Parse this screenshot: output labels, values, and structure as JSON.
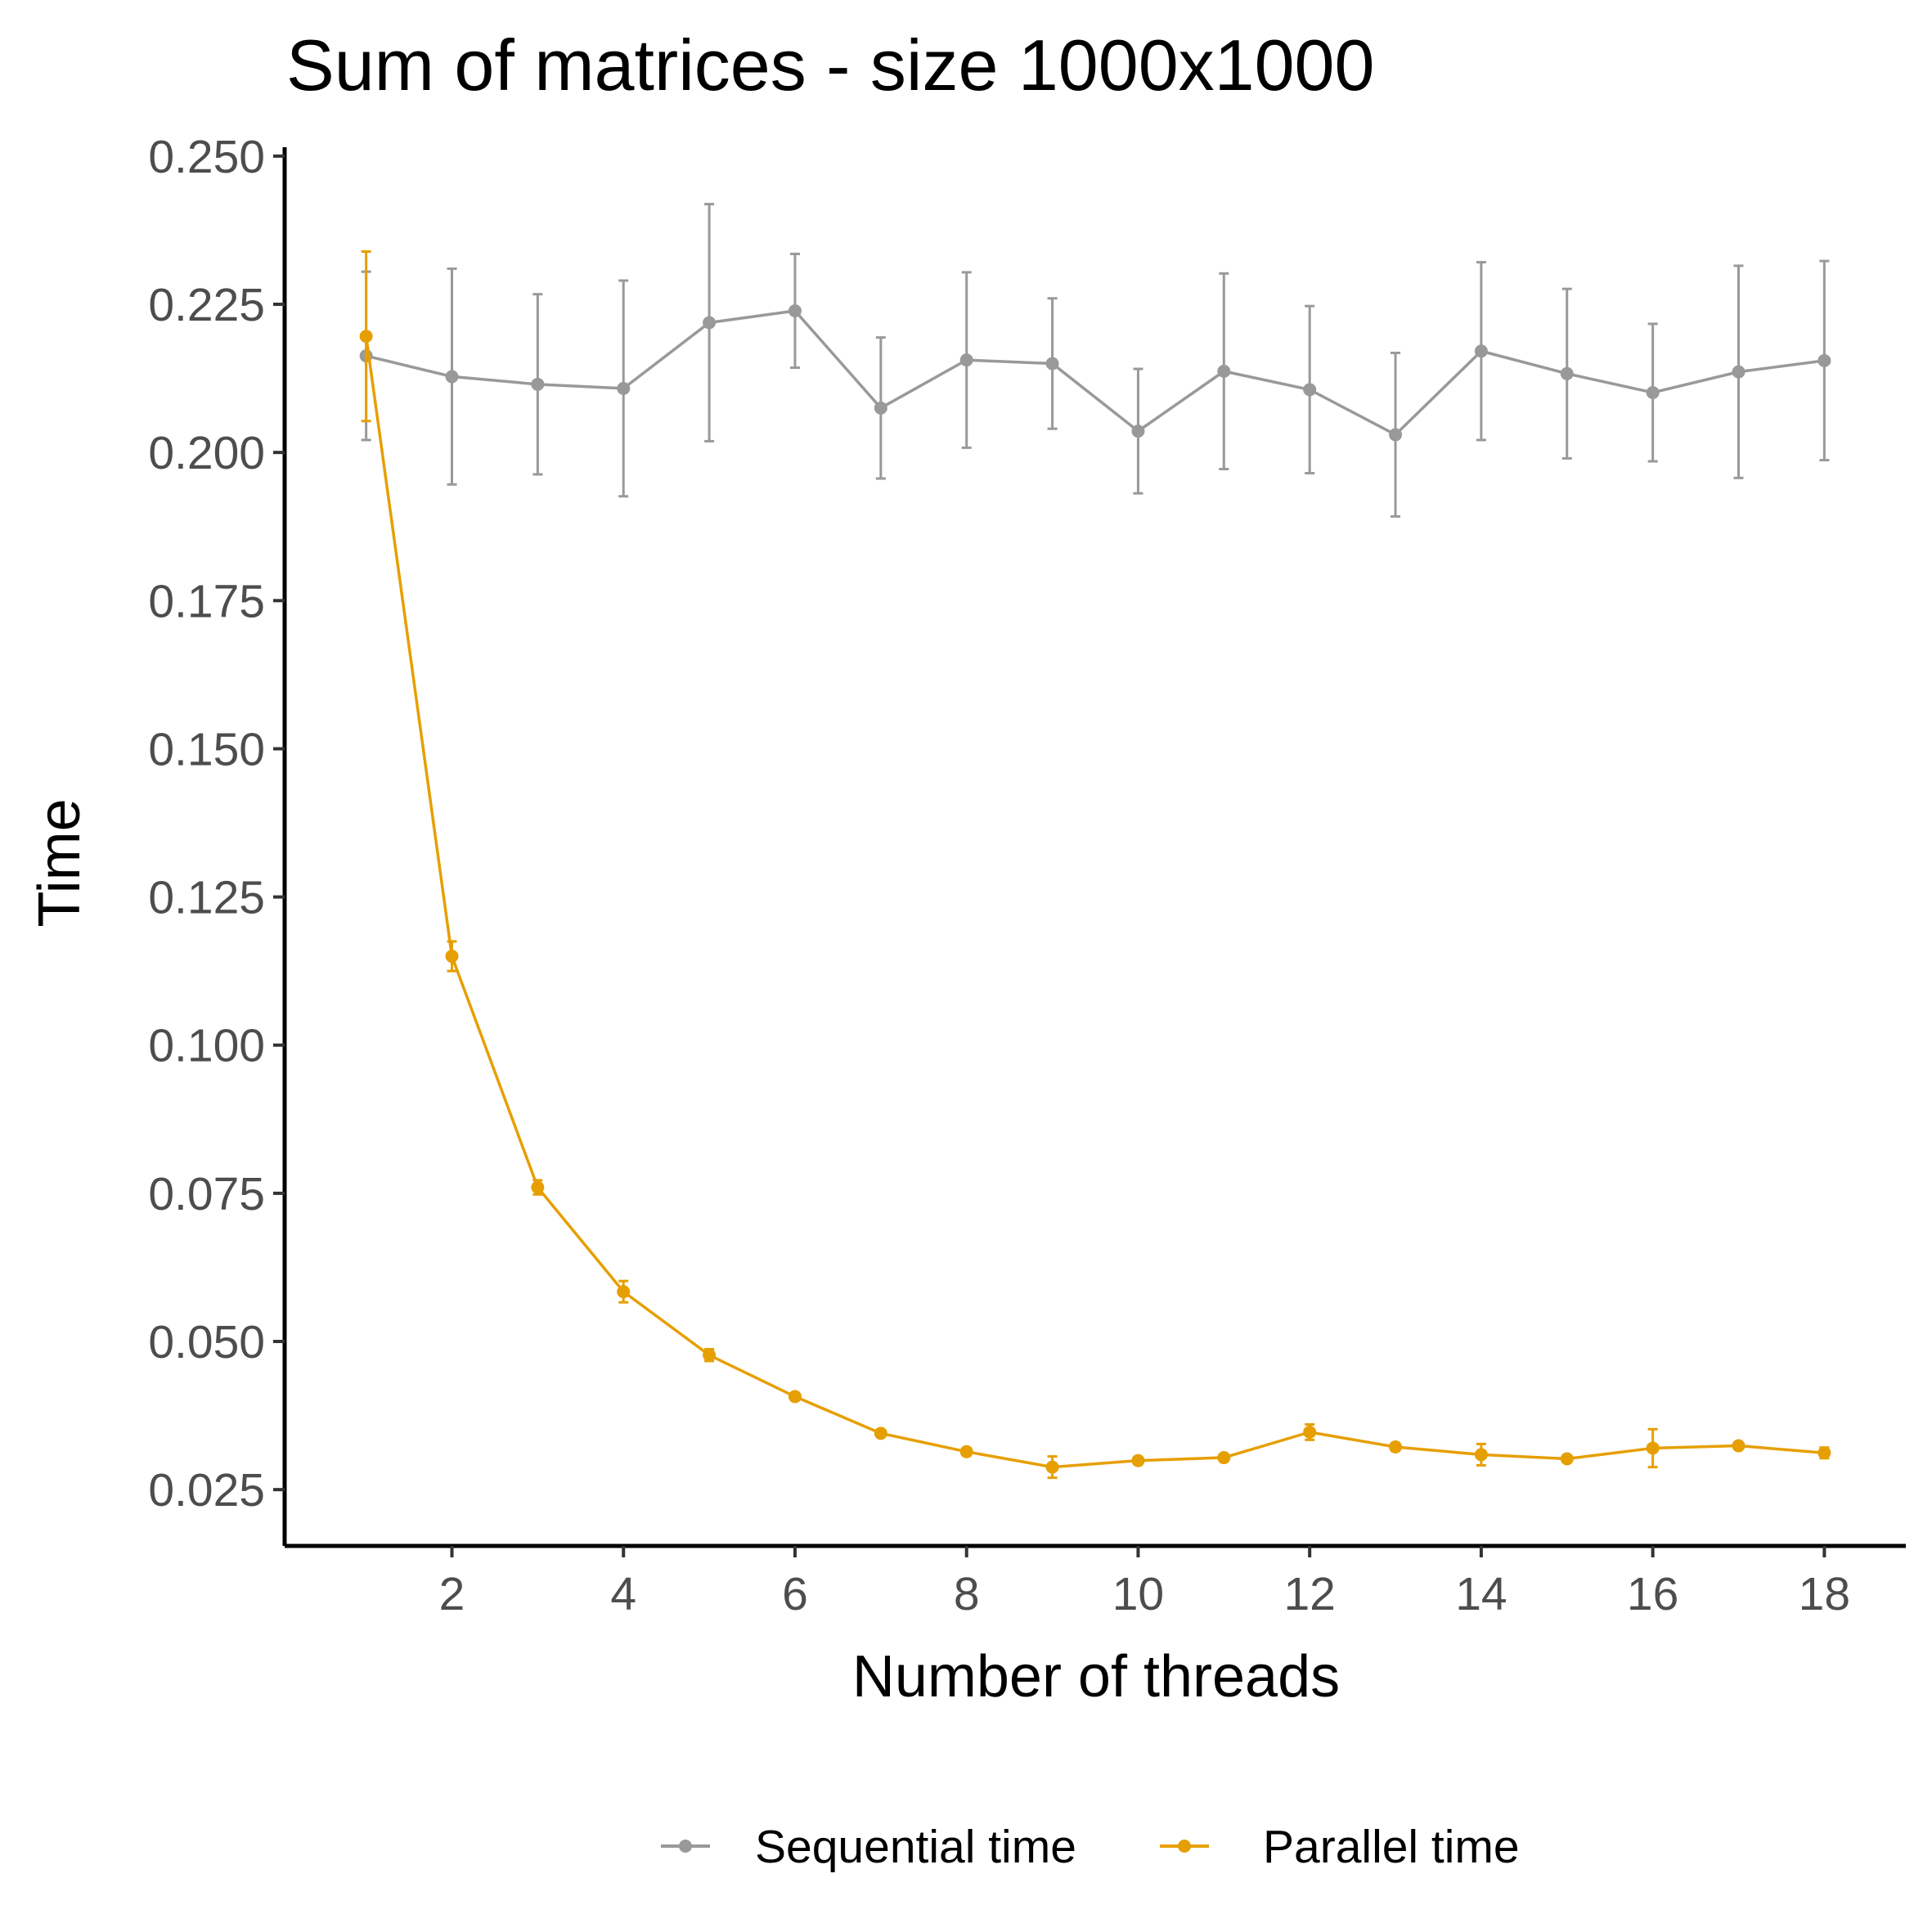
{
  "chart_data": {
    "type": "line",
    "title": "Sum of matrices - size 1000x1000",
    "xlabel": "Number of threads",
    "ylabel": "Time",
    "xlim": [
      0.05,
      18.95
    ],
    "ylim": [
      0.0155,
      0.2515
    ],
    "x_ticks": [
      2,
      4,
      6,
      8,
      10,
      12,
      14,
      16,
      18
    ],
    "x_tick_labels": [
      "2",
      "4",
      "6",
      "8",
      "10",
      "12",
      "14",
      "16",
      "18"
    ],
    "y_ticks": [
      0.025,
      0.05,
      0.075,
      0.1,
      0.125,
      0.15,
      0.175,
      0.2,
      0.225,
      0.25
    ],
    "y_tick_labels": [
      "0.025",
      "0.050",
      "0.075",
      "0.100",
      "0.125",
      "0.150",
      "0.175",
      "0.200",
      "0.225",
      "0.250"
    ],
    "grid": false,
    "legend_position": "bottom",
    "x": [
      1,
      2,
      3,
      4,
      5,
      6,
      7,
      8,
      9,
      10,
      11,
      12,
      13,
      14,
      15,
      16,
      17,
      18
    ],
    "series": [
      {
        "name": "Sequential time",
        "color": "#999999",
        "values": [
          0.2163,
          0.2128,
          0.2115,
          0.2108,
          0.2219,
          0.2239,
          0.2075,
          0.2156,
          0.215,
          0.2036,
          0.2137,
          0.2106,
          0.203,
          0.2171,
          0.2133,
          0.2101,
          0.2136,
          0.2155
        ],
        "error": [
          0.0142,
          0.0182,
          0.0152,
          0.0182,
          0.02,
          0.0096,
          0.0119,
          0.0148,
          0.011,
          0.0105,
          0.0165,
          0.0141,
          0.0138,
          0.015,
          0.0143,
          0.0116,
          0.0179,
          0.0168
        ]
      },
      {
        "name": "Parallel time",
        "color": "#E69F00",
        "values": [
          0.2196,
          0.115,
          0.076,
          0.0584,
          0.0477,
          0.0407,
          0.0345,
          0.0314,
          0.0288,
          0.0299,
          0.0304,
          0.0347,
          0.0322,
          0.0309,
          0.0302,
          0.032,
          0.0324,
          0.0312
        ],
        "error": [
          0.0143,
          0.0025,
          0.0012,
          0.0018,
          0.001,
          0.0006,
          0.0005,
          0.0006,
          0.0018,
          0.0006,
          0.0005,
          0.0013,
          0.0006,
          0.0018,
          0.0005,
          0.0032,
          0.0005,
          0.0009
        ]
      }
    ]
  }
}
